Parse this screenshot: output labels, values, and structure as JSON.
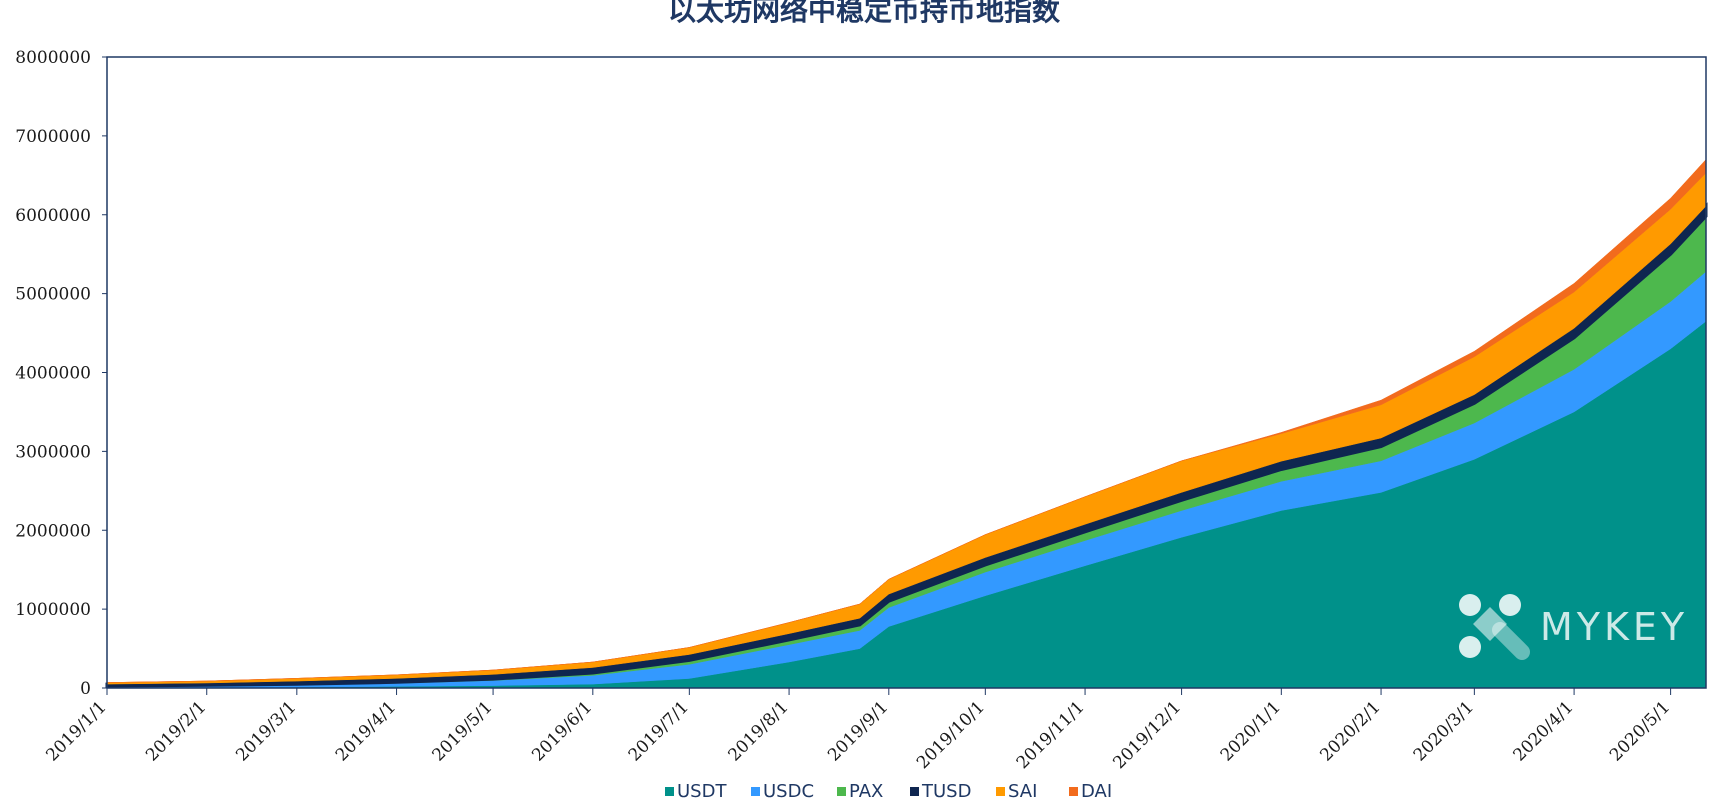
{
  "chart_data": {
    "type": "area",
    "stacked": true,
    "title": "以太坊网络中稳定币持币地指数",
    "x": [
      "2019/1/1",
      "2019/2/1",
      "2019/3/1",
      "2019/4/1",
      "2019/5/1",
      "2019/6/1",
      "2019/7/1",
      "2019/8/1",
      "2019/8/23",
      "2019/9/1",
      "2019/10/1",
      "2019/11/1",
      "2019/12/1",
      "2020/1/1",
      "2020/2/1",
      "2020/3/1",
      "2020/4/1",
      "2020/5/1",
      "2020/5/12"
    ],
    "x_ticks": [
      "2019/1/1",
      "2019/2/1",
      "2019/3/1",
      "2019/4/1",
      "2019/5/1",
      "2019/6/1",
      "2019/7/1",
      "2019/8/1",
      "2019/9/1",
      "2019/10/1",
      "2019/11/1",
      "2019/12/1",
      "2020/1/1",
      "2020/2/1",
      "2020/3/1",
      "2020/4/1",
      "2020/5/1"
    ],
    "ylim": [
      0,
      8000000
    ],
    "y_ticks": [
      0,
      1000000,
      2000000,
      3000000,
      4000000,
      5000000,
      6000000,
      7000000,
      8000000
    ],
    "grid": false,
    "legend_position": "bottom",
    "series": [
      {
        "name": "USDT",
        "color": "#00918a",
        "values": [
          5000,
          8000,
          12000,
          20000,
          30000,
          50000,
          120000,
          330000,
          500000,
          780000,
          1170000,
          1550000,
          1910000,
          2250000,
          2480000,
          2900000,
          3500000,
          4300000,
          4650000
        ]
      },
      {
        "name": "USDC",
        "color": "#3399ff",
        "values": [
          15000,
          20000,
          28000,
          40000,
          65000,
          110000,
          180000,
          220000,
          230000,
          240000,
          300000,
          320000,
          340000,
          370000,
          400000,
          460000,
          540000,
          600000,
          630000
        ]
      },
      {
        "name": "PAX",
        "color": "#4db84d",
        "values": [
          5000,
          6000,
          8000,
          12000,
          18000,
          30000,
          50000,
          60000,
          70000,
          80000,
          90000,
          110000,
          130000,
          150000,
          180000,
          250000,
          400000,
          600000,
          700000
        ]
      },
      {
        "name": "TUSD",
        "color": "#0f2650",
        "values": [
          25000,
          30000,
          40000,
          50000,
          60000,
          70000,
          75000,
          80000,
          85000,
          90000,
          95000,
          95000,
          100000,
          105000,
          110000,
          110000,
          120000,
          130000,
          130000
        ]
      },
      {
        "name": "SAI",
        "color": "#ff9a00",
        "values": [
          20000,
          25000,
          35000,
          45000,
          55000,
          70000,
          90000,
          140000,
          180000,
          190000,
          290000,
          350000,
          400000,
          350000,
          420000,
          480000,
          460000,
          440000,
          420000
        ]
      },
      {
        "name": "DAI",
        "color": "#f26b1d",
        "values": [
          0,
          0,
          0,
          0,
          0,
          0,
          0,
          0,
          0,
          0,
          0,
          0,
          0,
          15000,
          60000,
          70000,
          110000,
          140000,
          170000
        ]
      }
    ]
  },
  "watermark": {
    "text": "MYKEY"
  }
}
